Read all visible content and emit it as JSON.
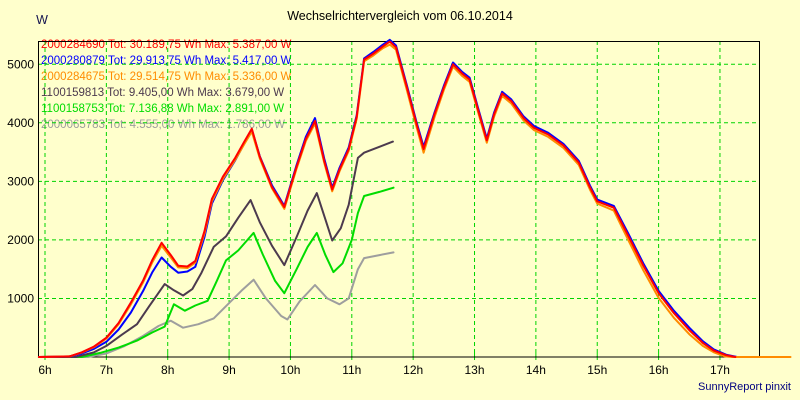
{
  "title": "Wechselrichtervergleich vom 06.10.2014",
  "footer": {
    "credit": "SunnyReport pinxit"
  },
  "colors": {
    "background": "#ffffcc",
    "grid": "#00d300",
    "axis_border": "#000000",
    "tick_text": "#000000",
    "unit_text": "#14144f",
    "credit_text": "#000080"
  },
  "chart_data": {
    "type": "line",
    "title": "Wechselrichtervergleich vom 06.10.2014",
    "y_unit": "W",
    "xlabel": "",
    "ylabel": "W",
    "ylim": [
      0,
      5400
    ],
    "xlim_hours": [
      5.9,
      17.65
    ],
    "grid": true,
    "legend_position": "top-left",
    "x_tick_hours": [
      6,
      7,
      8,
      9,
      10,
      11,
      12,
      13,
      14,
      15,
      16,
      17
    ],
    "x_tick_labels": [
      "6h",
      "7h",
      "8h",
      "9h",
      "10h",
      "11h",
      "12h",
      "13h",
      "14h",
      "15h",
      "16h",
      "17h"
    ],
    "y_tick_values": [
      1000,
      2000,
      3000,
      4000,
      5000
    ],
    "y_tick_labels": [
      "1000",
      "2000",
      "3000",
      "4000",
      "5000"
    ],
    "series": [
      {
        "id": "2000284690",
        "legend": "2000284690 Tot: 30.189,75 Wh Max: 5.387,00 W",
        "total_wh": "30.189,75",
        "max_w": "5.387,00",
        "color": "#ff0000",
        "z": 6,
        "points": [
          [
            5.9,
            0
          ],
          [
            6.4,
            10
          ],
          [
            6.6,
            80
          ],
          [
            6.8,
            180
          ],
          [
            7.0,
            330
          ],
          [
            7.2,
            580
          ],
          [
            7.4,
            930
          ],
          [
            7.6,
            1310
          ],
          [
            7.75,
            1660
          ],
          [
            7.9,
            1950
          ],
          [
            8.05,
            1740
          ],
          [
            8.17,
            1560
          ],
          [
            8.32,
            1545
          ],
          [
            8.45,
            1640
          ],
          [
            8.6,
            2150
          ],
          [
            8.72,
            2700
          ],
          [
            8.9,
            3080
          ],
          [
            9.1,
            3400
          ],
          [
            9.25,
            3680
          ],
          [
            9.37,
            3900
          ],
          [
            9.5,
            3420
          ],
          [
            9.7,
            2900
          ],
          [
            9.9,
            2560
          ],
          [
            10.1,
            3250
          ],
          [
            10.25,
            3720
          ],
          [
            10.4,
            4030
          ],
          [
            10.55,
            3350
          ],
          [
            10.68,
            2860
          ],
          [
            10.8,
            3200
          ],
          [
            10.95,
            3550
          ],
          [
            11.08,
            4100
          ],
          [
            11.2,
            5080
          ],
          [
            11.35,
            5180
          ],
          [
            11.5,
            5300
          ],
          [
            11.62,
            5387
          ],
          [
            11.72,
            5290
          ],
          [
            11.9,
            4600
          ],
          [
            12.05,
            4000
          ],
          [
            12.17,
            3550
          ],
          [
            12.35,
            4150
          ],
          [
            12.5,
            4600
          ],
          [
            12.65,
            5000
          ],
          [
            12.8,
            4840
          ],
          [
            12.92,
            4740
          ],
          [
            13.05,
            4250
          ],
          [
            13.2,
            3700
          ],
          [
            13.32,
            4150
          ],
          [
            13.45,
            4500
          ],
          [
            13.6,
            4370
          ],
          [
            13.8,
            4080
          ],
          [
            13.97,
            3915
          ],
          [
            14.2,
            3800
          ],
          [
            14.45,
            3610
          ],
          [
            14.7,
            3320
          ],
          [
            14.88,
            2900
          ],
          [
            15.0,
            2660
          ],
          [
            15.27,
            2550
          ],
          [
            15.5,
            2080
          ],
          [
            15.75,
            1560
          ],
          [
            16.0,
            1090
          ],
          [
            16.25,
            750
          ],
          [
            16.5,
            460
          ],
          [
            16.72,
            240
          ],
          [
            16.9,
            110
          ],
          [
            17.1,
            30
          ],
          [
            17.25,
            0
          ]
        ]
      },
      {
        "id": "2000280879",
        "legend": "2000280879 Tot: 29.913,75 Wh Max: 5.417,00 W",
        "total_wh": "29.913,75",
        "max_w": "5.417,00",
        "color": "#0000ff",
        "z": 4,
        "points": [
          [
            5.9,
            0
          ],
          [
            6.4,
            10
          ],
          [
            6.6,
            60
          ],
          [
            6.8,
            140
          ],
          [
            7.0,
            260
          ],
          [
            7.2,
            470
          ],
          [
            7.4,
            760
          ],
          [
            7.6,
            1130
          ],
          [
            7.75,
            1450
          ],
          [
            7.9,
            1700
          ],
          [
            8.05,
            1540
          ],
          [
            8.17,
            1440
          ],
          [
            8.32,
            1460
          ],
          [
            8.45,
            1540
          ],
          [
            8.6,
            2050
          ],
          [
            8.72,
            2620
          ],
          [
            8.9,
            3020
          ],
          [
            9.1,
            3360
          ],
          [
            9.25,
            3650
          ],
          [
            9.37,
            3880
          ],
          [
            9.5,
            3430
          ],
          [
            9.7,
            2930
          ],
          [
            9.9,
            2580
          ],
          [
            10.1,
            3280
          ],
          [
            10.25,
            3760
          ],
          [
            10.4,
            4080
          ],
          [
            10.55,
            3390
          ],
          [
            10.68,
            2890
          ],
          [
            10.8,
            3230
          ],
          [
            10.95,
            3580
          ],
          [
            11.08,
            4130
          ],
          [
            11.2,
            5100
          ],
          [
            11.35,
            5210
          ],
          [
            11.5,
            5330
          ],
          [
            11.62,
            5417
          ],
          [
            11.72,
            5320
          ],
          [
            11.9,
            4630
          ],
          [
            12.05,
            4030
          ],
          [
            12.17,
            3590
          ],
          [
            12.35,
            4180
          ],
          [
            12.5,
            4630
          ],
          [
            12.65,
            5030
          ],
          [
            12.8,
            4870
          ],
          [
            12.92,
            4770
          ],
          [
            13.05,
            4280
          ],
          [
            13.2,
            3730
          ],
          [
            13.32,
            4180
          ],
          [
            13.45,
            4530
          ],
          [
            13.6,
            4400
          ],
          [
            13.8,
            4110
          ],
          [
            13.97,
            3945
          ],
          [
            14.2,
            3830
          ],
          [
            14.45,
            3640
          ],
          [
            14.7,
            3350
          ],
          [
            14.88,
            2930
          ],
          [
            15.0,
            2690
          ],
          [
            15.27,
            2580
          ],
          [
            15.5,
            2120
          ],
          [
            15.75,
            1600
          ],
          [
            16.0,
            1130
          ],
          [
            16.25,
            790
          ],
          [
            16.5,
            500
          ],
          [
            16.72,
            270
          ],
          [
            16.9,
            130
          ],
          [
            17.1,
            40
          ],
          [
            17.28,
            0
          ]
        ]
      },
      {
        "id": "2000284675",
        "legend": "2000284675 Tot: 29.514,75 Wh Max: 5.336,00 W",
        "total_wh": "29.514,75",
        "max_w": "5.336,00",
        "color": "#ff8c00",
        "z": 5,
        "points": [
          [
            5.9,
            0
          ],
          [
            6.4,
            10
          ],
          [
            6.6,
            75
          ],
          [
            6.8,
            170
          ],
          [
            7.0,
            315
          ],
          [
            7.2,
            560
          ],
          [
            7.4,
            900
          ],
          [
            7.6,
            1280
          ],
          [
            7.75,
            1620
          ],
          [
            7.9,
            1900
          ],
          [
            8.05,
            1700
          ],
          [
            8.17,
            1530
          ],
          [
            8.32,
            1520
          ],
          [
            8.45,
            1610
          ],
          [
            8.6,
            2110
          ],
          [
            8.72,
            2660
          ],
          [
            8.9,
            3040
          ],
          [
            9.1,
            3370
          ],
          [
            9.25,
            3640
          ],
          [
            9.37,
            3850
          ],
          [
            9.5,
            3390
          ],
          [
            9.7,
            2880
          ],
          [
            9.9,
            2530
          ],
          [
            10.1,
            3220
          ],
          [
            10.25,
            3690
          ],
          [
            10.4,
            3990
          ],
          [
            10.55,
            3320
          ],
          [
            10.68,
            2830
          ],
          [
            10.8,
            3170
          ],
          [
            10.95,
            3520
          ],
          [
            11.08,
            4070
          ],
          [
            11.2,
            5050
          ],
          [
            11.35,
            5150
          ],
          [
            11.5,
            5270
          ],
          [
            11.62,
            5336
          ],
          [
            11.72,
            5250
          ],
          [
            11.9,
            4550
          ],
          [
            12.05,
            3950
          ],
          [
            12.17,
            3490
          ],
          [
            12.35,
            4100
          ],
          [
            12.5,
            4560
          ],
          [
            12.65,
            4960
          ],
          [
            12.8,
            4800
          ],
          [
            12.92,
            4700
          ],
          [
            13.05,
            4210
          ],
          [
            13.2,
            3660
          ],
          [
            13.32,
            4110
          ],
          [
            13.45,
            4460
          ],
          [
            13.6,
            4330
          ],
          [
            13.8,
            4040
          ],
          [
            13.97,
            3875
          ],
          [
            14.2,
            3760
          ],
          [
            14.45,
            3570
          ],
          [
            14.7,
            3280
          ],
          [
            14.88,
            2860
          ],
          [
            15.0,
            2620
          ],
          [
            15.27,
            2500
          ],
          [
            15.5,
            2010
          ],
          [
            15.75,
            1480
          ],
          [
            16.0,
            1010
          ],
          [
            16.25,
            670
          ],
          [
            16.5,
            390
          ],
          [
            16.72,
            190
          ],
          [
            16.9,
            80
          ],
          [
            17.08,
            10
          ],
          [
            17.2,
            0
          ],
          [
            18.15,
            0
          ]
        ]
      },
      {
        "id": "1100159813",
        "legend": "1100159813 Tot: 9.405,00 Wh Max: 3.679,00 W",
        "total_wh": "9.405,00",
        "max_w": "3.679,00",
        "color": "#4c3a4e",
        "z": 3,
        "points": [
          [
            5.9,
            0
          ],
          [
            6.5,
            0
          ],
          [
            6.8,
            80
          ],
          [
            7.0,
            190
          ],
          [
            7.25,
            380
          ],
          [
            7.5,
            560
          ],
          [
            7.7,
            870
          ],
          [
            7.95,
            1245
          ],
          [
            8.1,
            1140
          ],
          [
            8.25,
            1050
          ],
          [
            8.4,
            1160
          ],
          [
            8.55,
            1440
          ],
          [
            8.75,
            1880
          ],
          [
            8.95,
            2060
          ],
          [
            9.15,
            2380
          ],
          [
            9.35,
            2680
          ],
          [
            9.5,
            2300
          ],
          [
            9.7,
            1900
          ],
          [
            9.9,
            1570
          ],
          [
            10.1,
            2050
          ],
          [
            10.28,
            2500
          ],
          [
            10.43,
            2800
          ],
          [
            10.57,
            2350
          ],
          [
            10.68,
            1990
          ],
          [
            10.82,
            2200
          ],
          [
            10.95,
            2600
          ],
          [
            11.1,
            3400
          ],
          [
            11.2,
            3490
          ],
          [
            11.45,
            3590
          ],
          [
            11.67,
            3679
          ]
        ]
      },
      {
        "id": "1100158753",
        "legend": "1100158753 Tot: 7.136,88 Wh Max: 2.891,00 W",
        "total_wh": "7.136,88",
        "max_w": "2.891,00",
        "color": "#00dc00",
        "z": 2,
        "points": [
          [
            5.9,
            0
          ],
          [
            6.6,
            0
          ],
          [
            6.9,
            70
          ],
          [
            7.2,
            160
          ],
          [
            7.5,
            280
          ],
          [
            7.75,
            420
          ],
          [
            7.95,
            520
          ],
          [
            8.1,
            900
          ],
          [
            8.28,
            790
          ],
          [
            8.45,
            880
          ],
          [
            8.65,
            960
          ],
          [
            8.8,
            1300
          ],
          [
            8.95,
            1650
          ],
          [
            9.15,
            1820
          ],
          [
            9.4,
            2120
          ],
          [
            9.55,
            1750
          ],
          [
            9.75,
            1300
          ],
          [
            9.9,
            1090
          ],
          [
            10.1,
            1500
          ],
          [
            10.28,
            1880
          ],
          [
            10.43,
            2120
          ],
          [
            10.57,
            1740
          ],
          [
            10.7,
            1450
          ],
          [
            10.85,
            1600
          ],
          [
            11.0,
            2000
          ],
          [
            11.1,
            2460
          ],
          [
            11.2,
            2750
          ],
          [
            11.45,
            2820
          ],
          [
            11.68,
            2891
          ]
        ]
      },
      {
        "id": "2000065783",
        "legend": "2000065783 Tot: 4.555,00 Wh Max: 1.786,00 W",
        "total_wh": "4.555,00",
        "max_w": "1.786,00",
        "color": "#9e9e9e",
        "z": 1,
        "points": [
          [
            5.9,
            0
          ],
          [
            6.7,
            0
          ],
          [
            7.0,
            60
          ],
          [
            7.3,
            190
          ],
          [
            7.6,
            360
          ],
          [
            7.85,
            530
          ],
          [
            8.05,
            620
          ],
          [
            8.25,
            500
          ],
          [
            8.5,
            560
          ],
          [
            8.75,
            660
          ],
          [
            9.0,
            920
          ],
          [
            9.2,
            1130
          ],
          [
            9.4,
            1320
          ],
          [
            9.6,
            1000
          ],
          [
            9.85,
            700
          ],
          [
            9.95,
            640
          ],
          [
            10.15,
            950
          ],
          [
            10.4,
            1230
          ],
          [
            10.6,
            1000
          ],
          [
            10.8,
            900
          ],
          [
            10.95,
            1000
          ],
          [
            11.1,
            1500
          ],
          [
            11.2,
            1690
          ],
          [
            11.45,
            1740
          ],
          [
            11.68,
            1786
          ]
        ]
      }
    ]
  }
}
